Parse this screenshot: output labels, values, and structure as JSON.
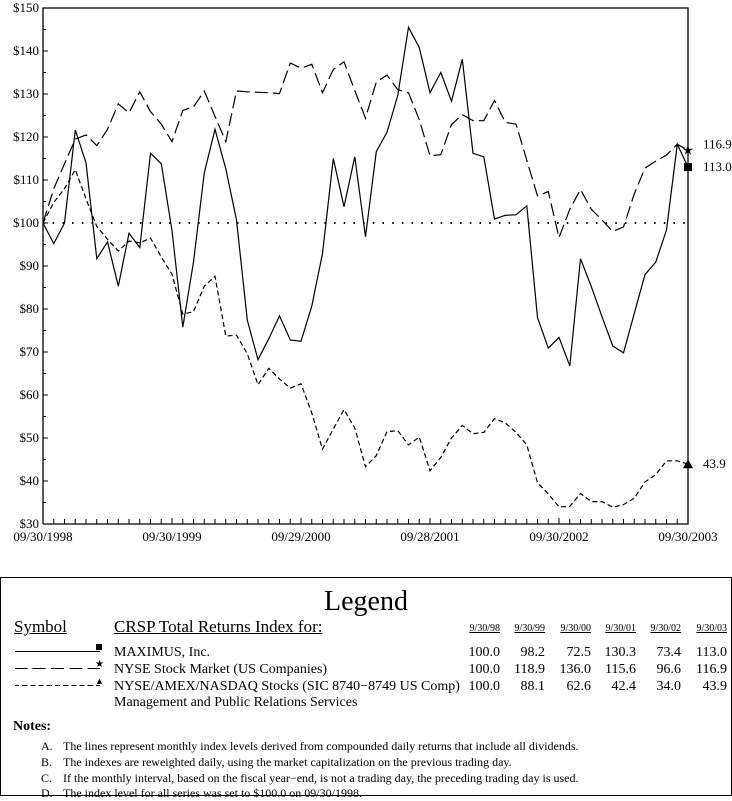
{
  "chart_data": {
    "type": "line",
    "ylim": [
      30,
      150
    ],
    "yticks": [
      "$30",
      "$40",
      "$50",
      "$60",
      "$70",
      "$80",
      "$90",
      "$100",
      "$110",
      "$120",
      "$130",
      "$140",
      "$150"
    ],
    "xtick_labels": [
      "09/30/1998",
      "09/30/1999",
      "09/29/2000",
      "09/28/2001",
      "09/30/2002",
      "09/30/2003"
    ],
    "x_months": 61,
    "baseline": 100,
    "series": [
      {
        "name": "MAXIMUS, Inc.",
        "style": "solid",
        "marker": "square",
        "end_label": "113.0",
        "values": [
          100,
          95.2,
          100,
          121.6,
          114,
          91.7,
          95.6,
          85.3,
          97.6,
          94.3,
          116.2,
          113.8,
          98.2,
          75.8,
          90.9,
          111.7,
          121.8,
          112.6,
          100.7,
          77.4,
          68.2,
          73.1,
          78.4,
          72.8,
          72.5,
          80.7,
          92.9,
          115,
          103.8,
          115.4,
          96.8,
          116.6,
          121.1,
          129.7,
          145.5,
          140.8,
          130.3,
          135,
          128.3,
          138.1,
          116.2,
          115.4,
          100.9,
          101.8,
          101.9,
          104,
          78,
          70.9,
          73.4,
          66.8,
          91.7,
          85.2,
          78.2,
          71.4,
          69.8,
          79,
          88,
          90.9,
          98.4,
          118.3,
          113.0
        ]
      },
      {
        "name": "NYSE Stock Market (US Companies)",
        "style": "long-dash",
        "marker": "star",
        "end_label": "116.9",
        "values": [
          100,
          108,
          113.8,
          119.5,
          120.5,
          118,
          121.8,
          127.7,
          125.6,
          130.5,
          125.9,
          123,
          118.9,
          126.2,
          127,
          130.7,
          124.8,
          118.9,
          130.7,
          130.5,
          130.4,
          130.3,
          130.1,
          137.2,
          136.0,
          136.9,
          130.3,
          135.7,
          137.5,
          130.8,
          124.4,
          132.8,
          134.4,
          131,
          130.3,
          124,
          115.6,
          115.9,
          122.9,
          125.2,
          123.8,
          123.8,
          128.5,
          123.4,
          123,
          114.6,
          106.3,
          107.3,
          96.6,
          103.2,
          107.8,
          103.2,
          100.7,
          98,
          99.1,
          106.8,
          112.8,
          114.4,
          115.8,
          118.3,
          116.9
        ]
      },
      {
        "name": "NYSE/AMEX/NASDAQ Stocks (SIC 8740-8749 US Comp)",
        "style": "short-dash",
        "marker": "triangle",
        "end_label": "43.9",
        "values": [
          100,
          104.8,
          108,
          112.4,
          105.6,
          99.2,
          96.2,
          93.5,
          95.8,
          95.4,
          96.5,
          92.1,
          88.1,
          78.8,
          79.4,
          85.3,
          87.6,
          73.7,
          73.9,
          69.6,
          62.4,
          66.2,
          63.7,
          61.6,
          62.6,
          55.8,
          47.4,
          52.1,
          56.6,
          52.3,
          43.3,
          45.9,
          51.5,
          51.7,
          48.4,
          50.2,
          42.4,
          45.5,
          50,
          52.9,
          51,
          51.3,
          54.5,
          53.5,
          51.3,
          48.4,
          39.6,
          37,
          34.0,
          34.1,
          37.1,
          35.2,
          35.2,
          33.9,
          34.5,
          36,
          39.8,
          41.5,
          44.7,
          44.7,
          43.9
        ]
      }
    ]
  },
  "legend": {
    "title": "Legend",
    "symbol_header": "Symbol",
    "index_header": "CRSP Total Returns Index for:",
    "dates": [
      "9/30/98",
      "9/30/99",
      "9/30/00",
      "9/30/01",
      "9/30/02",
      "9/30/03"
    ],
    "rows": [
      {
        "name": "MAXIMUS, Inc.",
        "name2": "",
        "values": [
          "100.0",
          "98.2",
          "72.5",
          "130.3",
          "73.4",
          "113.0"
        ]
      },
      {
        "name": "NYSE Stock Market (US Companies)",
        "name2": "",
        "values": [
          "100.0",
          "118.9",
          "136.0",
          "115.6",
          "96.6",
          "116.9"
        ]
      },
      {
        "name": "NYSE/AMEX/NASDAQ Stocks (SIC 8740−8749 US Comp)",
        "name2": "Management and Public Relations Services",
        "values": [
          "100.0",
          "88.1",
          "62.6",
          "42.4",
          "34.0",
          "43.9"
        ]
      }
    ]
  },
  "notes": {
    "title": "Notes:",
    "items": [
      {
        "letter": "A.",
        "text": "The lines represent monthly index levels derived from compounded daily returns that include all dividends."
      },
      {
        "letter": "B.",
        "text": "The indexes are reweighted daily, using the market capitalization on the previous trading day."
      },
      {
        "letter": "C.",
        "text": "If the monthly interval, based on the fiscal year−end, is not a trading day, the preceding trading day is used."
      },
      {
        "letter": "D.",
        "text": "The index level for all series was set to $100.0 on 09/30/1998."
      }
    ]
  }
}
